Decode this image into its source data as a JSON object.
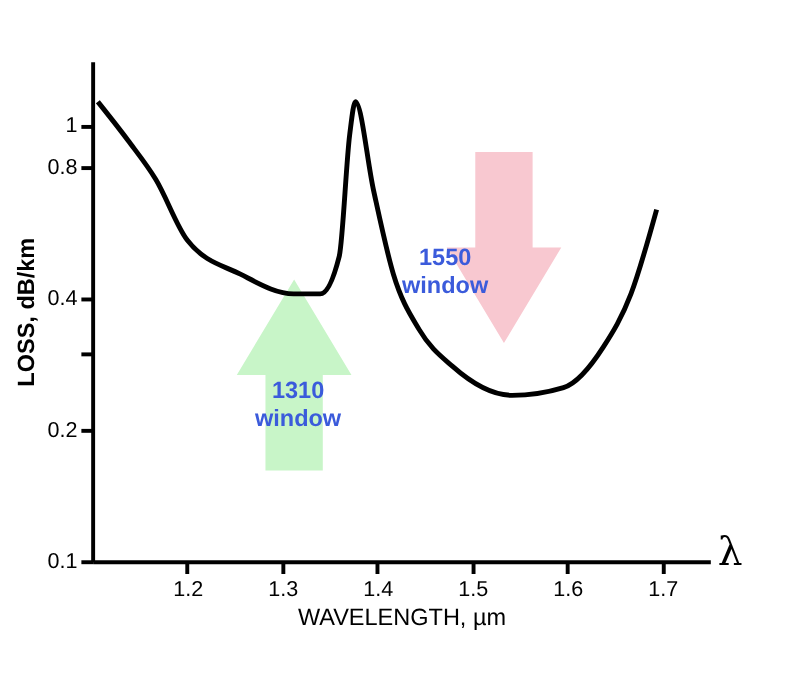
{
  "chart_data": {
    "type": "line",
    "xlabel": "WAVELENGTH, µm",
    "ylabel": "LOSS, dB/km",
    "log": "y",
    "grid": false,
    "marker": "none",
    "line_style": "solid",
    "xlim": [
      1.1,
      1.75
    ],
    "xticks": [
      1.2,
      1.3,
      1.4,
      1.5,
      1.6,
      1.7
    ],
    "ylim": [
      0.1,
      1.4
    ],
    "yticks": [
      0.1,
      0.2,
      {
        "value": 0.3,
        "label": null
      },
      0.4,
      0.8,
      1
    ],
    "series": [
      {
        "color": "#000000",
        "x": [
          1.106,
          1.138,
          1.167,
          1.2,
          1.256,
          1.312,
          1.34,
          1.36,
          1.371,
          1.377,
          1.396,
          1.417,
          1.444,
          1.479,
          1.542,
          1.596,
          1.638,
          1.667,
          1.694
        ],
        "values": [
          1.13,
          0.92,
          0.75,
          0.545,
          0.455,
          0.41,
          0.41,
          0.5,
          0.95,
          1.13,
          0.71,
          0.455,
          0.34,
          0.28,
          0.24,
          0.25,
          0.31,
          0.41,
          0.64
        ]
      }
    ],
    "annotations": [
      "1310\nwindow",
      "1550\nwindow",
      "λ"
    ]
  }
}
